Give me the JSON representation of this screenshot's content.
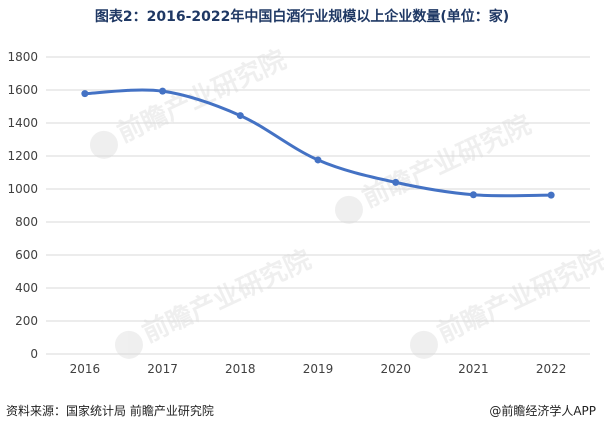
{
  "title": "图表2：2016-2022年中国白酒行业规模以上企业数量(单位：家)",
  "footer": {
    "source": "资料来源：国家统计局 前瞻产业研究院",
    "brand": "@前瞻经济学人APP"
  },
  "watermark": {
    "text": "前瞻产业研究院"
  },
  "chart_data": {
    "type": "line",
    "title": "图表2：2016-2022年中国白酒行业规模以上企业数量(单位：家)",
    "categories": [
      "2016",
      "2017",
      "2018",
      "2019",
      "2020",
      "2021",
      "2022"
    ],
    "series": [
      {
        "values": [
          1578,
          1593,
          1445,
          1176,
          1040,
          965,
          963
        ]
      }
    ],
    "ylim": [
      0,
      1800
    ],
    "yticks": [
      0,
      200,
      400,
      600,
      800,
      1000,
      1200,
      1400,
      1600,
      1800
    ],
    "grid": "horizontal",
    "legend": "none",
    "line_color": "#4472c4",
    "grid_color": "#d9d9d9"
  }
}
